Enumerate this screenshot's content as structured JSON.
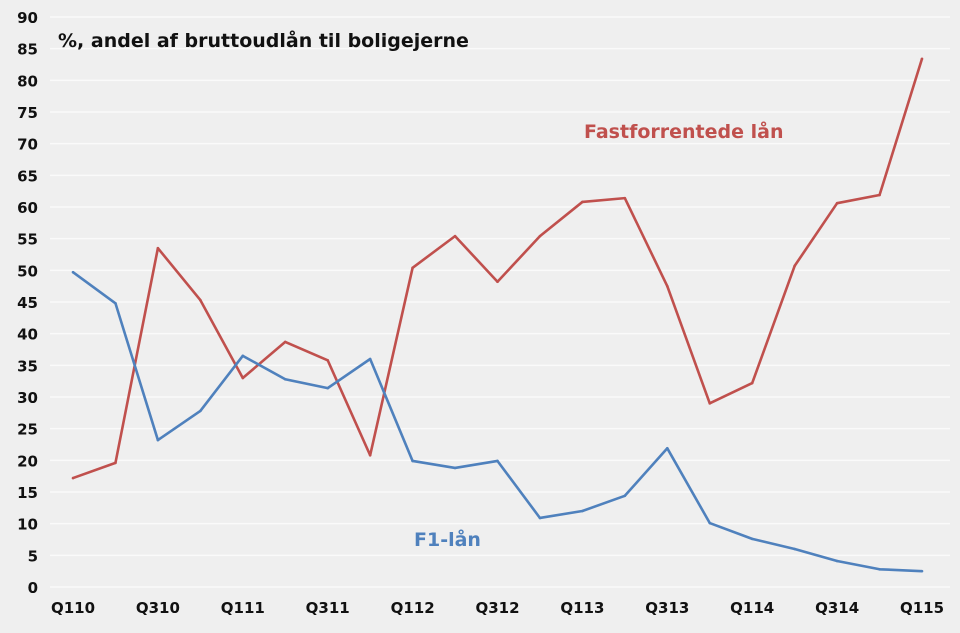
{
  "chart_data": {
    "type": "line",
    "title": "%, andel af bruttoudlån til boligejerne",
    "xlabel": "",
    "ylabel": "",
    "ylim": [
      0,
      90
    ],
    "yticks": [
      0,
      5,
      10,
      15,
      20,
      25,
      30,
      35,
      40,
      45,
      50,
      55,
      60,
      65,
      70,
      75,
      80,
      85,
      90
    ],
    "x": [
      "Q110",
      "Q210",
      "Q310",
      "Q410",
      "Q111",
      "Q211",
      "Q311",
      "Q411",
      "Q112",
      "Q212",
      "Q312",
      "Q412",
      "Q113",
      "Q213",
      "Q313",
      "Q413",
      "Q114",
      "Q214",
      "Q314",
      "Q414",
      "Q115"
    ],
    "xtick_labels": [
      "Q110",
      "Q310",
      "Q111",
      "Q311",
      "Q112",
      "Q312",
      "Q113",
      "Q313",
      "Q114",
      "Q314",
      "Q115"
    ],
    "grid": true,
    "series": [
      {
        "name": "Fastforrentede lån",
        "color": "#c0504d",
        "values": [
          17.2,
          19.6,
          53.5,
          45.3,
          33.0,
          38.7,
          35.8,
          20.8,
          50.4,
          55.4,
          48.2,
          55.4,
          60.8,
          61.4,
          47.5,
          29.0,
          32.2,
          50.7,
          60.6,
          61.9,
          83.4
        ]
      },
      {
        "name": "F1-lån",
        "color": "#4f81bd",
        "values": [
          49.7,
          44.8,
          23.2,
          27.8,
          36.5,
          32.8,
          31.4,
          36.0,
          19.9,
          18.8,
          19.9,
          10.9,
          12.0,
          14.4,
          21.9,
          10.1,
          7.6,
          6.0,
          4.1,
          2.8,
          2.5
        ]
      }
    ]
  }
}
